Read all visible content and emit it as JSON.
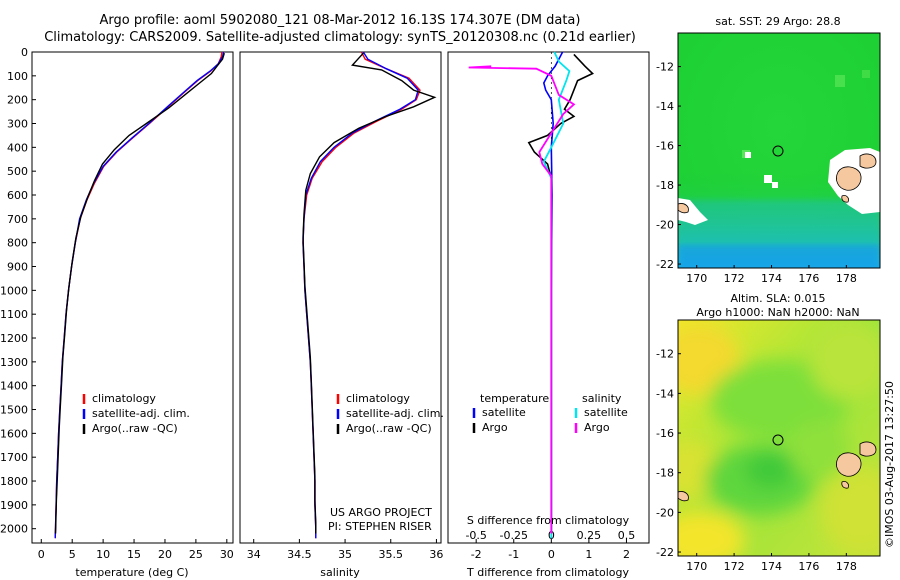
{
  "header": {
    "title_line1": "Argo profile: aoml 5902080_121 08-Mar-2012 16.13S 174.307E (DM data)",
    "title_line2": "Climatology: CARS2009. Satellite-adjusted climatology: synTS_20120308.nc (0.21d earlier)"
  },
  "watermark": "©IMOS 03-Aug-2017 13:27:50",
  "colors": {
    "climatology": "#ff0000",
    "satellite": "#0000ff",
    "argo": "#000000",
    "salinity_sat": "#00e5ee",
    "salinity_argo": "#ff00ff"
  },
  "chart_data": [
    {
      "type": "line",
      "xlabel": "temperature (deg C)",
      "xticks": [
        0,
        5,
        10,
        15,
        20,
        25,
        30
      ],
      "xlim": [
        -1.5,
        31
      ],
      "ylim": [
        0,
        2060
      ],
      "yticks": [
        0,
        100,
        200,
        300,
        400,
        500,
        600,
        700,
        800,
        900,
        1000,
        1100,
        1200,
        1300,
        1400,
        1500,
        1600,
        1700,
        1800,
        1900,
        2000
      ],
      "legend": [
        "climatology",
        "satellite-adj. clim.",
        "Argo(..raw -QC)"
      ],
      "series": [
        {
          "name": "climatology",
          "points": [
            [
              29.2,
              0
            ],
            [
              29.1,
              20
            ],
            [
              28.6,
              50
            ],
            [
              27.4,
              80
            ],
            [
              25.3,
              120
            ],
            [
              23.1,
              170
            ],
            [
              20.5,
              230
            ],
            [
              17.5,
              300
            ],
            [
              14.8,
              360
            ],
            [
              12.2,
              420
            ],
            [
              10.1,
              480
            ],
            [
              8.6,
              550
            ],
            [
              7.4,
              620
            ],
            [
              6.3,
              700
            ],
            [
              5.5,
              800
            ],
            [
              4.9,
              900
            ],
            [
              4.4,
              1000
            ],
            [
              4.0,
              1100
            ],
            [
              3.7,
              1200
            ],
            [
              3.4,
              1300
            ],
            [
              3.2,
              1400
            ],
            [
              3.0,
              1500
            ],
            [
              2.8,
              1600
            ],
            [
              2.65,
              1700
            ],
            [
              2.5,
              1800
            ],
            [
              2.4,
              1900
            ],
            [
              2.3,
              2000
            ],
            [
              2.25,
              2040
            ]
          ]
        },
        {
          "name": "satellite-adj. clim.",
          "points": [
            [
              29.5,
              0
            ],
            [
              29.3,
              20
            ],
            [
              28.6,
              50
            ],
            [
              27.3,
              80
            ],
            [
              25.2,
              120
            ],
            [
              23.0,
              170
            ],
            [
              20.4,
              230
            ],
            [
              17.4,
              300
            ],
            [
              14.7,
              360
            ],
            [
              12.1,
              420
            ],
            [
              10.0,
              480
            ],
            [
              8.5,
              550
            ],
            [
              7.3,
              620
            ],
            [
              6.2,
              700
            ],
            [
              5.5,
              800
            ],
            [
              4.9,
              900
            ],
            [
              4.4,
              1000
            ],
            [
              4.0,
              1100
            ],
            [
              3.7,
              1200
            ],
            [
              3.4,
              1300
            ],
            [
              3.2,
              1400
            ],
            [
              3.0,
              1500
            ],
            [
              2.8,
              1600
            ],
            [
              2.65,
              1700
            ],
            [
              2.5,
              1800
            ],
            [
              2.4,
              1900
            ],
            [
              2.3,
              2000
            ],
            [
              2.25,
              2040
            ]
          ]
        },
        {
          "name": "Argo(..raw -QC)",
          "points": [
            [
              29.6,
              5
            ],
            [
              29.3,
              30
            ],
            [
              28.4,
              60
            ],
            [
              27.5,
              90
            ],
            [
              25.6,
              130
            ],
            [
              23.2,
              180
            ],
            [
              20.6,
              235
            ],
            [
              17.0,
              300
            ],
            [
              14.2,
              350
            ],
            [
              11.8,
              410
            ],
            [
              9.9,
              470
            ],
            [
              8.6,
              540
            ],
            [
              7.5,
              610
            ],
            [
              6.4,
              690
            ],
            [
              5.6,
              780
            ],
            [
              5.0,
              880
            ],
            [
              4.5,
              980
            ],
            [
              4.1,
              1080
            ],
            [
              3.8,
              1180
            ],
            [
              3.5,
              1280
            ],
            [
              3.3,
              1380
            ],
            [
              3.1,
              1480
            ],
            [
              2.9,
              1580
            ],
            [
              2.75,
              1680
            ],
            [
              2.6,
              1780
            ],
            [
              2.45,
              1880
            ],
            [
              2.35,
              1980
            ],
            [
              2.3,
              2020
            ]
          ]
        }
      ]
    },
    {
      "type": "line",
      "xlabel": "salinity",
      "xticks": [
        34,
        34.5,
        35,
        35.5,
        36
      ],
      "xlim": [
        33.85,
        36.05
      ],
      "ylim": [
        0,
        2060
      ],
      "legend": [
        "climatology",
        "satellite-adj. clim.",
        "Argo(..raw -QC)"
      ],
      "annotation": [
        "US ARGO PROJECT",
        "PI: STEPHEN RISER"
      ],
      "series": [
        {
          "name": "climatology",
          "points": [
            [
              35.18,
              0
            ],
            [
              35.22,
              30
            ],
            [
              35.45,
              70
            ],
            [
              35.7,
              110
            ],
            [
              35.82,
              160
            ],
            [
              35.78,
              200
            ],
            [
              35.62,
              240
            ],
            [
              35.35,
              290
            ],
            [
              35.1,
              340
            ],
            [
              34.9,
              400
            ],
            [
              34.75,
              460
            ],
            [
              34.64,
              530
            ],
            [
              34.58,
              600
            ],
            [
              34.55,
              700
            ],
            [
              34.54,
              800
            ],
            [
              34.55,
              900
            ],
            [
              34.56,
              1000
            ],
            [
              34.58,
              1100
            ],
            [
              34.6,
              1200
            ],
            [
              34.62,
              1300
            ],
            [
              34.63,
              1400
            ],
            [
              34.64,
              1500
            ],
            [
              34.65,
              1600
            ],
            [
              34.66,
              1700
            ],
            [
              34.67,
              1800
            ],
            [
              34.67,
              1900
            ],
            [
              34.68,
              2000
            ],
            [
              34.68,
              2040
            ]
          ]
        },
        {
          "name": "satellite-adj. clim.",
          "points": [
            [
              35.2,
              0
            ],
            [
              35.25,
              30
            ],
            [
              35.45,
              70
            ],
            [
              35.68,
              110
            ],
            [
              35.8,
              160
            ],
            [
              35.77,
              200
            ],
            [
              35.6,
              240
            ],
            [
              35.33,
              290
            ],
            [
              35.08,
              340
            ],
            [
              34.88,
              400
            ],
            [
              34.73,
              460
            ],
            [
              34.63,
              530
            ],
            [
              34.57,
              600
            ],
            [
              34.55,
              700
            ],
            [
              34.54,
              800
            ],
            [
              34.55,
              900
            ],
            [
              34.56,
              1000
            ],
            [
              34.58,
              1100
            ],
            [
              34.6,
              1200
            ],
            [
              34.62,
              1300
            ],
            [
              34.63,
              1400
            ],
            [
              34.64,
              1500
            ],
            [
              34.65,
              1600
            ],
            [
              34.66,
              1700
            ],
            [
              34.67,
              1800
            ],
            [
              34.67,
              1900
            ],
            [
              34.68,
              2000
            ],
            [
              34.68,
              2040
            ]
          ]
        },
        {
          "name": "Argo(..raw -QC)",
          "points": [
            [
              35.2,
              5
            ],
            [
              35.08,
              55
            ],
            [
              35.4,
              75
            ],
            [
              35.62,
              120
            ],
            [
              35.75,
              160
            ],
            [
              35.98,
              190
            ],
            [
              35.75,
              230
            ],
            [
              35.45,
              270
            ],
            [
              35.15,
              320
            ],
            [
              34.88,
              380
            ],
            [
              34.72,
              440
            ],
            [
              34.62,
              510
            ],
            [
              34.57,
              580
            ],
            [
              34.55,
              680
            ],
            [
              34.54,
              780
            ],
            [
              34.55,
              880
            ],
            [
              34.56,
              980
            ],
            [
              34.58,
              1080
            ],
            [
              34.6,
              1180
            ],
            [
              34.62,
              1280
            ],
            [
              34.63,
              1380
            ],
            [
              34.64,
              1480
            ],
            [
              34.65,
              1580
            ],
            [
              34.66,
              1680
            ],
            [
              34.67,
              1780
            ],
            [
              34.67,
              1880
            ],
            [
              34.68,
              1980
            ],
            [
              34.68,
              2020
            ]
          ]
        }
      ]
    },
    {
      "type": "line",
      "xlabel": "T difference from climatology",
      "xlabel_top": "S difference from climatology",
      "xticks": [
        -2,
        -1,
        0,
        1,
        2
      ],
      "xticks_top": [
        -0.5,
        -0.25,
        0,
        0.25,
        0.5
      ],
      "xlim": [
        -2.75,
        2.6
      ],
      "ylim": [
        0,
        2060
      ],
      "legend_temperature": [
        "satellite",
        "Argo"
      ],
      "legend_salinity": [
        "satellite",
        "Argo"
      ],
      "legend_headers": [
        "temperature",
        "salinity"
      ],
      "series": [
        {
          "name": "temperature satellite",
          "points": [
            [
              0.3,
              0
            ],
            [
              0.2,
              30
            ],
            [
              0.1,
              60
            ],
            [
              -0.1,
              100
            ],
            [
              -0.2,
              130
            ],
            [
              -0.15,
              160
            ],
            [
              0.0,
              200
            ],
            [
              0.05,
              300
            ],
            [
              0.0,
              400
            ],
            [
              0.02,
              600
            ],
            [
              0.0,
              1000
            ],
            [
              0.0,
              2040
            ]
          ]
        },
        {
          "name": "temperature Argo",
          "points": [
            [
              0.6,
              10
            ],
            [
              0.9,
              60
            ],
            [
              1.1,
              90
            ],
            [
              0.7,
              120
            ],
            [
              0.5,
              200
            ],
            [
              0.35,
              240
            ],
            [
              0.6,
              270
            ],
            [
              0.25,
              300
            ],
            [
              -0.1,
              350
            ],
            [
              -0.6,
              380
            ],
            [
              -0.45,
              420
            ],
            [
              -0.1,
              470
            ],
            [
              0.0,
              530
            ],
            [
              0.0,
              600
            ],
            [
              0.0,
              2020
            ]
          ]
        }
      ],
      "salinity_series": [
        {
          "name": "salinity satellite",
          "points": [
            [
              0.02,
              0
            ],
            [
              0.05,
              40
            ],
            [
              0.12,
              80
            ],
            [
              0.1,
              120
            ],
            [
              0.05,
              200
            ],
            [
              0.08,
              300
            ],
            [
              0.0,
              400
            ],
            [
              -0.05,
              460
            ],
            [
              0.0,
              530
            ],
            [
              0.0,
              1000
            ],
            [
              0.0,
              2040
            ]
          ]
        },
        {
          "name": "salinity Argo",
          "points": [
            [
              -0.4,
              60
            ],
            [
              -0.55,
              65
            ],
            [
              -0.1,
              70
            ],
            [
              0.0,
              100
            ],
            [
              0.05,
              180
            ],
            [
              0.15,
              220
            ],
            [
              0.08,
              260
            ],
            [
              0.0,
              340
            ],
            [
              -0.08,
              420
            ],
            [
              -0.06,
              470
            ],
            [
              0.0,
              520
            ],
            [
              0.0,
              1000
            ],
            [
              0.0,
              2020
            ]
          ]
        }
      ]
    },
    {
      "type": "heatmap",
      "title": "sat. SST: 29 Argo: 28.8",
      "xticks": [
        170,
        172,
        174,
        176,
        178
      ],
      "yticks": [
        -12,
        -14,
        -16,
        -18,
        -20,
        -22
      ],
      "xlim": [
        169,
        179.8
      ],
      "ylim": [
        -22.2,
        -10.3
      ],
      "marker": [
        174.3,
        -16.13
      ]
    },
    {
      "type": "heatmap",
      "title_line1": "Altim. SLA: 0.015",
      "title_line2": "Argo h1000: NaN h2000: NaN",
      "xticks": [
        170,
        172,
        174,
        176,
        178
      ],
      "yticks": [
        -12,
        -14,
        -16,
        -18,
        -20,
        -22
      ],
      "xlim": [
        169,
        179.8
      ],
      "ylim": [
        -22.2,
        -10.3
      ],
      "marker": [
        174.3,
        -16.13
      ]
    }
  ]
}
